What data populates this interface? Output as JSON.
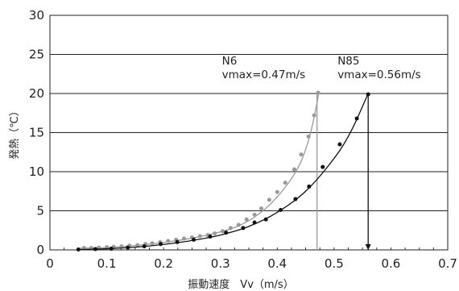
{
  "chart_data": {
    "type": "scatter",
    "title": "",
    "xlabel": "振動速度　Vv（m/s）",
    "ylabel": "発熱（℃）",
    "xlim": [
      0,
      0.7
    ],
    "ylim": [
      0,
      30
    ],
    "x_ticks": [
      "0",
      "0.1",
      "0.2",
      "0.3",
      "0.4",
      "0.5",
      "0.6",
      "0.7"
    ],
    "y_ticks": [
      "0",
      "5",
      "10",
      "15",
      "20",
      "25",
      "30"
    ],
    "grid": "horizontal",
    "legend": "none",
    "series": [
      {
        "name": "N6",
        "color": "#999999",
        "vmax": 0.47,
        "points": [
          [
            0.06,
            0.25
          ],
          [
            0.073,
            0.25
          ],
          [
            0.086,
            0.3
          ],
          [
            0.1,
            0.35
          ],
          [
            0.112,
            0.4
          ],
          [
            0.126,
            0.45
          ],
          [
            0.14,
            0.55
          ],
          [
            0.154,
            0.6
          ],
          [
            0.168,
            0.75
          ],
          [
            0.18,
            0.85
          ],
          [
            0.194,
            1.0
          ],
          [
            0.208,
            1.15
          ],
          [
            0.222,
            1.3
          ],
          [
            0.236,
            1.45
          ],
          [
            0.25,
            1.6
          ],
          [
            0.264,
            1.75
          ],
          [
            0.278,
            1.9
          ],
          [
            0.29,
            2.1
          ],
          [
            0.304,
            2.4
          ],
          [
            0.318,
            2.8
          ],
          [
            0.332,
            3.2
          ],
          [
            0.346,
            3.9
          ],
          [
            0.36,
            4.5
          ],
          [
            0.372,
            5.3
          ],
          [
            0.386,
            6.4
          ],
          [
            0.4,
            7.4
          ],
          [
            0.414,
            8.6
          ],
          [
            0.43,
            10.3
          ],
          [
            0.442,
            12.2
          ],
          [
            0.455,
            14.5
          ],
          [
            0.465,
            17.2
          ],
          [
            0.472,
            20.1
          ]
        ],
        "curve": [
          [
            0.05,
            0.2
          ],
          [
            0.1,
            0.3
          ],
          [
            0.15,
            0.55
          ],
          [
            0.2,
            0.95
          ],
          [
            0.25,
            1.5
          ],
          [
            0.3,
            2.3
          ],
          [
            0.33,
            3.0
          ],
          [
            0.36,
            4.2
          ],
          [
            0.39,
            6.0
          ],
          [
            0.42,
            8.6
          ],
          [
            0.44,
            11.0
          ],
          [
            0.455,
            14.0
          ],
          [
            0.465,
            17.0
          ],
          [
            0.473,
            20.0
          ]
        ]
      },
      {
        "name": "N85",
        "color": "#111111",
        "vmax": 0.56,
        "points": [
          [
            0.05,
            0.05
          ],
          [
            0.08,
            0.1
          ],
          [
            0.108,
            0.15
          ],
          [
            0.137,
            0.3
          ],
          [
            0.166,
            0.45
          ],
          [
            0.195,
            0.75
          ],
          [
            0.224,
            1.0
          ],
          [
            0.253,
            1.3
          ],
          [
            0.282,
            1.7
          ],
          [
            0.31,
            2.2
          ],
          [
            0.34,
            2.8
          ],
          [
            0.36,
            3.5
          ],
          [
            0.38,
            3.9
          ],
          [
            0.406,
            5.1
          ],
          [
            0.432,
            6.5
          ],
          [
            0.456,
            8.1
          ],
          [
            0.48,
            10.6
          ],
          [
            0.51,
            13.5
          ],
          [
            0.54,
            16.8
          ],
          [
            0.56,
            19.9
          ]
        ],
        "curve": [
          [
            0.05,
            0.05
          ],
          [
            0.1,
            0.15
          ],
          [
            0.15,
            0.35
          ],
          [
            0.2,
            0.7
          ],
          [
            0.25,
            1.2
          ],
          [
            0.3,
            1.9
          ],
          [
            0.35,
            3.0
          ],
          [
            0.4,
            4.8
          ],
          [
            0.45,
            7.5
          ],
          [
            0.5,
            11.7
          ],
          [
            0.53,
            15.2
          ],
          [
            0.56,
            20.0
          ]
        ]
      }
    ],
    "annotations": [
      {
        "series": "N6",
        "name": "N6",
        "text": "vmax=0.47m/s"
      },
      {
        "series": "N85",
        "name": "N85",
        "text": "vmax=0.56m/s"
      }
    ]
  }
}
